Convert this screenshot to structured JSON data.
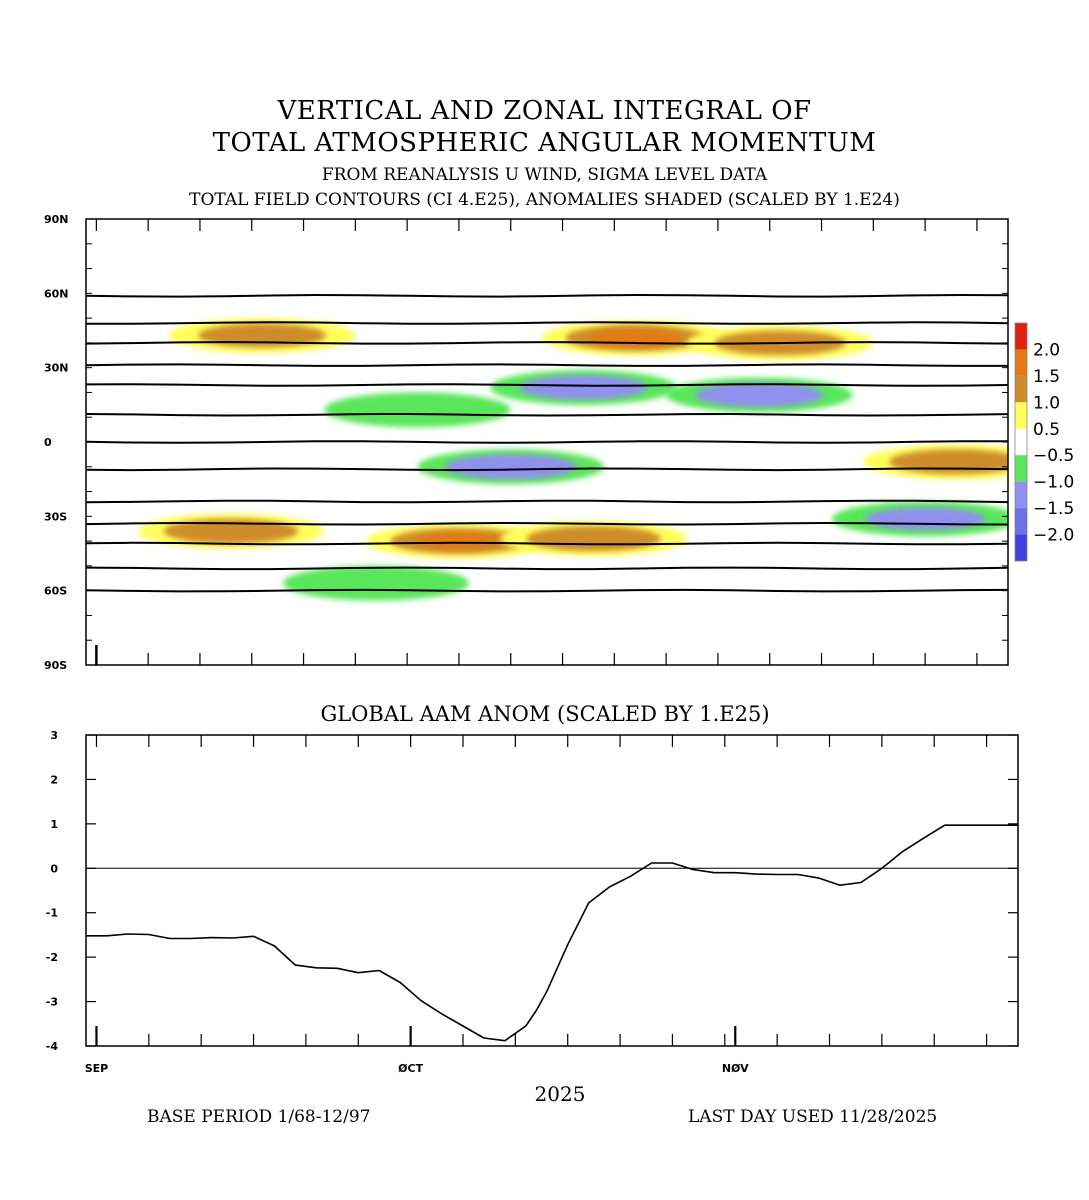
{
  "header": {
    "title_line1": "VERTICAL AND ZONAL INTEGRAL OF",
    "title_line2": "TOTAL ATMOSPHERIC ANGULAR MOMENTUM",
    "subtitle1": "FROM REANALYSIS U WIND,  SIGMA LEVEL DATA",
    "subtitle2": "TOTAL FIELD CONTOURS (CI 4.E25),  ANOMALIES SHADED (SCALED BY 1.E24)"
  },
  "footer": {
    "year": "2025",
    "base_period": "BASE PERIOD  1/68-12/97",
    "last_day": "LAST DAY USED 11/28/2025"
  },
  "chart_data": [
    {
      "type": "heatmap",
      "title": "VERTICAL AND ZONAL INTEGRAL OF TOTAL ATMOSPHERIC ANGULAR MOMENTUM",
      "y_ticks": [
        "90N",
        "60N",
        "30N",
        "0",
        "30S",
        "60S",
        "90S"
      ],
      "y_values": [
        90,
        60,
        30,
        0,
        -30,
        -60,
        -90
      ],
      "x_range": [
        "2025-08-30",
        "2025-11-28"
      ],
      "colorbar": {
        "labels": [
          "2.0",
          "1.5",
          "1.0",
          "0.5",
          "−0.5",
          "−1.0",
          "−1.5",
          "−2.0"
        ],
        "colors": [
          "#e02010",
          "#e27a14",
          "#cf8c2c",
          "#ffff5a",
          "#ffffff",
          "#5ae65a",
          "#9090f0",
          "#7070e6",
          "#4040e0"
        ]
      },
      "total_field_contour_latitudes": [
        59,
        48,
        40,
        31,
        23,
        11,
        0,
        -11,
        -24,
        -33,
        -41,
        -51,
        -60
      ],
      "anomaly_blobs": [
        {
          "lon_day": 17,
          "lat": 43,
          "value": 1.2
        },
        {
          "lon_day": 53,
          "lat": 42,
          "value": 1.6
        },
        {
          "lon_day": 67,
          "lat": 40,
          "value": 1.3
        },
        {
          "lon_day": 48,
          "lat": 22,
          "value": -1.2
        },
        {
          "lon_day": 65,
          "lat": 19,
          "value": -1.2
        },
        {
          "lon_day": 32,
          "lat": 13,
          "value": -0.8
        },
        {
          "lon_day": 41,
          "lat": -10,
          "value": -1.3
        },
        {
          "lon_day": 84,
          "lat": -8,
          "value": 1.4
        },
        {
          "lon_day": 14,
          "lat": -36,
          "value": 1.4
        },
        {
          "lon_day": 36,
          "lat": -40,
          "value": 1.5
        },
        {
          "lon_day": 49,
          "lat": -39,
          "value": 1.4
        },
        {
          "lon_day": 81,
          "lat": -31,
          "value": -1.0
        },
        {
          "lon_day": 28,
          "lat": -57,
          "value": -0.9
        }
      ]
    },
    {
      "type": "line",
      "title": "GLOBAL AAM ANOM (SCALED BY 1.E25)",
      "ylim": [
        -4,
        3
      ],
      "y_ticks": [
        3,
        2,
        1,
        0,
        -1,
        -2,
        -3,
        -4
      ],
      "x_tick_labels": [
        "SEP",
        "ØCT",
        "NØV"
      ],
      "x_tick_days": [
        1,
        31,
        62
      ],
      "x_range_days": [
        0,
        89
      ],
      "series": [
        {
          "x": [
            0,
            2,
            4,
            6,
            8,
            10,
            12,
            14,
            16,
            18,
            20,
            22,
            24,
            26,
            28,
            30,
            32,
            34,
            36,
            38,
            40,
            42,
            43,
            44,
            46,
            48,
            50,
            52,
            54,
            56,
            58,
            60,
            62,
            64,
            66,
            68,
            70,
            72,
            74,
            76,
            78,
            80,
            82,
            84,
            86,
            88,
            89
          ],
          "values": [
            -1.52,
            -1.52,
            -1.48,
            -1.49,
            -1.58,
            -1.58,
            -1.56,
            -1.57,
            -1.53,
            -1.75,
            -2.18,
            -2.24,
            -2.25,
            -2.35,
            -2.3,
            -2.57,
            -2.98,
            -3.28,
            -3.55,
            -3.82,
            -3.88,
            -3.55,
            -3.2,
            -2.77,
            -1.72,
            -0.78,
            -0.42,
            -0.18,
            0.12,
            0.12,
            -0.03,
            -0.1,
            -0.1,
            -0.13,
            -0.14,
            -0.14,
            -0.22,
            -0.38,
            -0.32,
            0.0,
            0.38,
            0.68,
            0.97,
            0.97,
            0.97,
            0.97,
            0.97
          ]
        }
      ]
    }
  ]
}
